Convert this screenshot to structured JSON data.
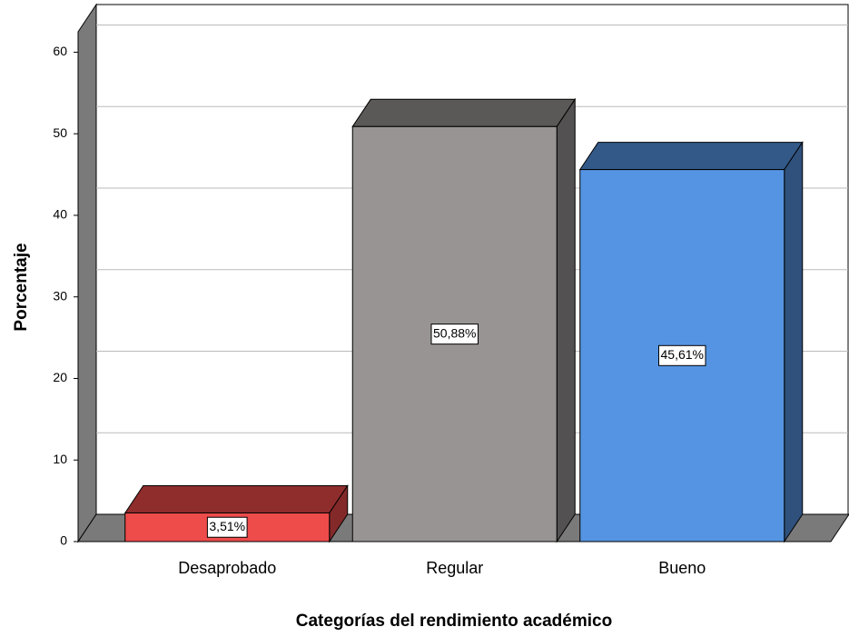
{
  "chart_data": {
    "type": "bar3d",
    "x_label": "Categorías del rendimiento académico",
    "y_label": "Porcentaje",
    "categories": [
      "Desaprobado",
      "Regular",
      "Bueno"
    ],
    "values": [
      3.51,
      50.88,
      45.61
    ],
    "value_labels": [
      "3,51%",
      "50,88%",
      "45,61%"
    ],
    "colors": [
      "#ee4b4b",
      "#979493",
      "#5594e2"
    ],
    "ylim": [
      0,
      62.5
    ],
    "yticks": [
      0,
      10,
      20,
      30,
      40,
      50,
      60
    ],
    "grid": true
  }
}
